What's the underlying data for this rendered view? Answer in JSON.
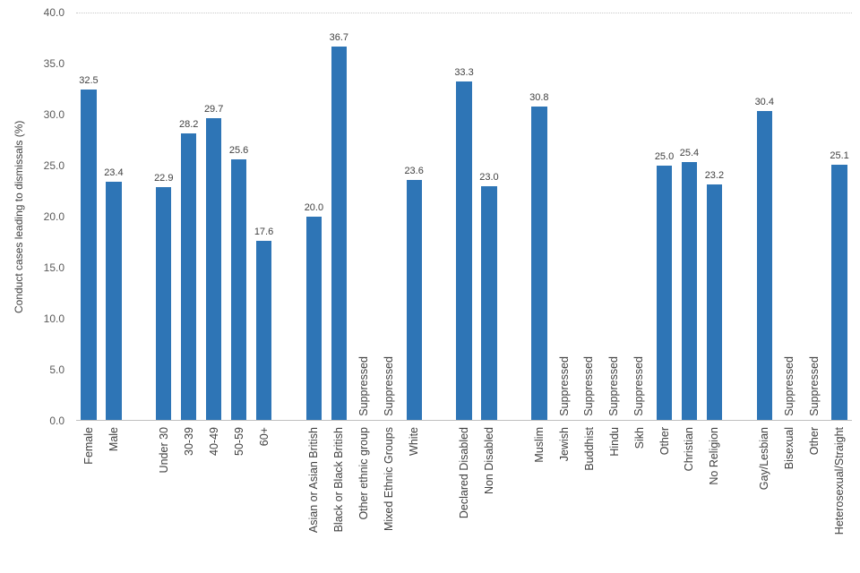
{
  "chart_data": {
    "type": "bar",
    "title": "",
    "xlabel": "",
    "ylabel": "Conduct cases leading to dismissals (%)",
    "ylim": [
      0,
      40
    ],
    "yticks": [
      "0.0",
      "5.0",
      "10.0",
      "15.0",
      "20.0",
      "25.0",
      "30.0",
      "35.0",
      "40.0"
    ],
    "grid": "top dotted line only",
    "legend": "none",
    "bar_color": "#2E75B6",
    "label_color": "#404040",
    "axis_text_color": "#595959",
    "suppressed_text": "Suppressed",
    "groups": [
      {
        "items": [
          {
            "label": "Female",
            "value": 32.5,
            "display": "32.5"
          },
          {
            "label": "Male",
            "value": 23.4,
            "display": "23.4"
          }
        ]
      },
      {
        "items": [
          {
            "label": "Under 30",
            "value": 22.9,
            "display": "22.9"
          },
          {
            "label": "30-39",
            "value": 28.2,
            "display": "28.2"
          },
          {
            "label": "40-49",
            "value": 29.7,
            "display": "29.7"
          },
          {
            "label": "50-59",
            "value": 25.6,
            "display": "25.6"
          },
          {
            "label": "60+",
            "value": 17.6,
            "display": "17.6"
          }
        ]
      },
      {
        "items": [
          {
            "label": "Asian or Asian British",
            "value": 20.0,
            "display": "20.0"
          },
          {
            "label": "Black or Black British",
            "value": 36.7,
            "display": "36.7"
          },
          {
            "label": "Other ethnic group",
            "suppressed": true
          },
          {
            "label": "Mixed Ethnic Groups",
            "suppressed": true
          },
          {
            "label": "White",
            "value": 23.6,
            "display": "23.6"
          }
        ]
      },
      {
        "items": [
          {
            "label": "Declared Disabled",
            "value": 33.3,
            "display": "33.3"
          },
          {
            "label": "Non Disabled",
            "value": 23.0,
            "display": "23.0"
          }
        ]
      },
      {
        "items": [
          {
            "label": "Muslim",
            "value": 30.8,
            "display": "30.8"
          },
          {
            "label": "Jewish",
            "suppressed": true
          },
          {
            "label": "Buddhist",
            "suppressed": true
          },
          {
            "label": "Hindu",
            "suppressed": true
          },
          {
            "label": "Sikh",
            "suppressed": true
          },
          {
            "label": "Other",
            "value": 25.0,
            "display": "25.0"
          },
          {
            "label": "Christian",
            "value": 25.4,
            "display": "25.4"
          },
          {
            "label": "No Religion",
            "value": 23.2,
            "display": "23.2"
          }
        ]
      },
      {
        "items": [
          {
            "label": "Gay/Lesbian",
            "value": 30.4,
            "display": "30.4"
          },
          {
            "label": "Bisexual",
            "suppressed": true
          },
          {
            "label": "Other",
            "suppressed": true
          },
          {
            "label": "Heterosexual/Straight",
            "value": 25.1,
            "display": "25.1"
          }
        ]
      }
    ]
  }
}
